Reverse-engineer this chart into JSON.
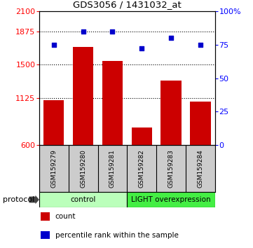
{
  "title": "GDS3056 / 1431032_at",
  "samples": [
    "GSM159279",
    "GSM159280",
    "GSM159281",
    "GSM159282",
    "GSM159283",
    "GSM159284"
  ],
  "counts": [
    1100,
    1700,
    1540,
    800,
    1320,
    1090
  ],
  "percentile_ranks": [
    75,
    85,
    85,
    72,
    80,
    75
  ],
  "ylim_left": [
    600,
    2100
  ],
  "ylim_right": [
    0,
    100
  ],
  "yticks_left": [
    600,
    1125,
    1500,
    1875,
    2100
  ],
  "yticks_right": [
    0,
    25,
    50,
    75,
    100
  ],
  "bar_color": "#cc0000",
  "dot_color": "#0000cc",
  "groups": [
    {
      "label": "control",
      "size": 3,
      "color": "#bbffbb"
    },
    {
      "label": "LIGHT overexpression",
      "size": 3,
      "color": "#44ee44"
    }
  ],
  "protocol_label": "protocol",
  "legend_items": [
    {
      "label": "count",
      "color": "#cc0000"
    },
    {
      "label": "percentile rank within the sample",
      "color": "#0000cc"
    }
  ],
  "grid_dotted_yticks": [
    1125,
    1500,
    1875
  ],
  "sample_box_color": "#cccccc",
  "plot_bg": "white"
}
